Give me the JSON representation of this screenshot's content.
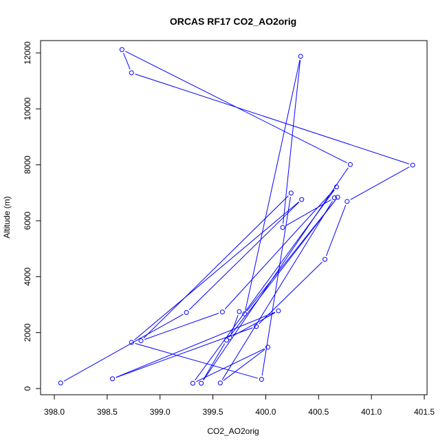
{
  "chart_data": {
    "type": "line",
    "title": "ORCAS RF17 CO2_AO2orig",
    "xlabel": "CO2_AO2orig",
    "ylabel": "Altitude (m)",
    "xlim": [
      398.0,
      401.5
    ],
    "ylim": [
      0,
      12000
    ],
    "x_ticks": [
      "398.0",
      "398.5",
      "399.0",
      "399.5",
      "400.0",
      "400.5",
      "401.0",
      "401.5"
    ],
    "y_ticks": [
      "0",
      "2000",
      "4000",
      "6000",
      "8000",
      "10000",
      "12000"
    ],
    "markers": "open-circle",
    "series": [
      {
        "color": "#0000ff",
        "x": [
          398.06,
          399.25,
          400.34,
          398.73,
          399.96,
          400.24,
          398.82,
          399.59,
          400.67,
          399.31,
          400.02,
          399.57,
          400.65,
          400.16,
          400.33,
          399.8,
          400.68,
          399.63,
          399.39,
          400.8,
          398.64,
          398.73,
          401.39,
          400.77,
          400.56,
          399.91,
          398.55,
          400.12,
          399.66,
          399.75
        ],
        "y": [
          200,
          2720,
          6760,
          1650,
          330,
          6990,
          1710,
          2740,
          7210,
          190,
          1480,
          200,
          6820,
          5760,
          11880,
          2670,
          6840,
          1730,
          190,
          8010,
          12120,
          11290,
          7990,
          6690,
          4620,
          2220,
          350,
          2780,
          1820,
          2750
        ]
      }
    ]
  }
}
